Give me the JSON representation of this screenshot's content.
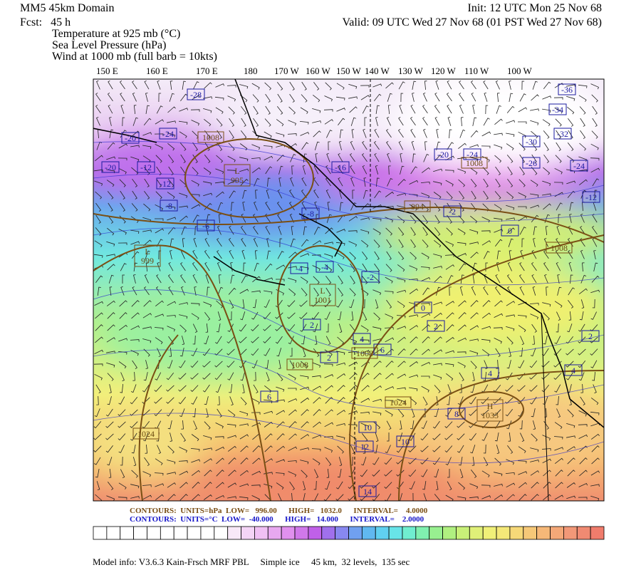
{
  "header": {
    "domain": "MM5 45km Domain",
    "forecast": "Fcst:   45 h",
    "init": "Init: 12 UTC Mon 25 Nov 68",
    "valid": "Valid: 09 UTC Wed 27 Nov 68 (01 PST Wed 27 Nov 68)",
    "fields": [
      "Temperature at 925 mb (°C)",
      "Sea Level Pressure (hPa)",
      "Wind at 1000 mb (full barb = 10kts)"
    ]
  },
  "longitudes": [
    "150 E",
    "160 E",
    "170 E",
    "180",
    "170 W",
    "160 W",
    "150 W",
    "140 W",
    "130 W",
    "120 W",
    "110 W",
    "100 W"
  ],
  "map_labels": {
    "temperature": [
      -28,
      -36,
      -34,
      -32,
      -30,
      -26,
      -24,
      -24,
      -24,
      -20,
      -20,
      -20,
      -16,
      -12,
      -12,
      -12,
      -8,
      -8,
      -6,
      -4,
      -4,
      -2,
      -2,
      0,
      0,
      2,
      2,
      2,
      2,
      4,
      4,
      4,
      6,
      6,
      8,
      10,
      10,
      12,
      14
    ],
    "pressure_centers": [
      {
        "symbol": "L",
        "value": "995"
      },
      {
        "symbol": "L",
        "value": "999"
      },
      {
        "symbol": "L",
        "value": "1001"
      },
      {
        "symbol": "H",
        "value": "1033"
      }
    ],
    "pressure": [
      "994",
      "1008",
      "1008",
      "1008",
      "1008",
      "1008",
      "1024",
      "1024"
    ]
  },
  "footer": {
    "pressure_contours": "CONTOURS:  UNITS=hPa  LOW=   996.00      HIGH=   1032.0      INTERVAL=    4.0000",
    "temperature_contours": "CONTOURS:  UNITS=°C  LOW=  -40.000      HIGH=   14.000      INTERVAL=    2.0000",
    "model_info": "Model info: V3.6.3 Kain-Frsch MRF PBL     Simple ice     45 km,  32 levels,  135 sec"
  }
}
